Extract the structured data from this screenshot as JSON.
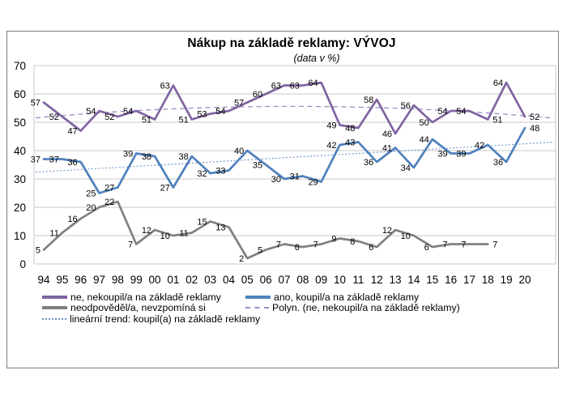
{
  "chart_data": {
    "type": "line",
    "title": "Nákup na základě reklamy: VÝVOJ",
    "subtitle": "(data v %)",
    "xlabel": "",
    "ylabel": "",
    "ylim": [
      0,
      70
    ],
    "yticks": [
      0,
      10,
      20,
      30,
      40,
      50,
      60,
      70
    ],
    "grid": true,
    "legend_position": "bottom",
    "categories": [
      "94",
      "95",
      "96",
      "97",
      "98",
      "99",
      "00",
      "01",
      "02",
      "03",
      "04",
      "05",
      "06",
      "07",
      "08",
      "09",
      "10",
      "11",
      "12",
      "13",
      "14",
      "15",
      "16",
      "17",
      "18",
      "19",
      "20"
    ],
    "series": [
      {
        "name": "ne, nekoupil/a na základě reklamy",
        "color": "#8064A2",
        "line_style": "solid",
        "values": [
          57,
          52,
          47,
          54,
          52,
          54,
          51,
          63,
          51,
          53,
          54,
          57,
          60,
          63,
          63,
          64,
          49,
          48,
          58,
          46,
          56,
          50,
          54,
          54,
          51,
          64,
          52
        ]
      },
      {
        "name": "ano, koupil/a na základě reklamy",
        "color": "#4F81BD",
        "line_style": "solid",
        "values": [
          37,
          37,
          36,
          25,
          27,
          39,
          38,
          27,
          38,
          32,
          33,
          40,
          35,
          30,
          31,
          29,
          42,
          43,
          36,
          41,
          34,
          44,
          39,
          39,
          42,
          36,
          48
        ]
      },
      {
        "name": "neodpověděl/a, nevzpomíná si",
        "color": "#808080",
        "line_style": "solid",
        "values": [
          5,
          11,
          16,
          20,
          22,
          7,
          12,
          10,
          11,
          15,
          13,
          2,
          5,
          7,
          6,
          7,
          9,
          8,
          6,
          12,
          10,
          6,
          7,
          7,
          7,
          null,
          null
        ]
      }
    ],
    "trendlines": [
      {
        "name": "Polyn. (ne, nekoupil/a na základě reklamy)",
        "type": "polynomial2",
        "color": "#9A8CC2",
        "line_style": "dashed",
        "coefficients": {
          "c0": 51.8,
          "c1": 0.565,
          "c2": -0.021
        }
      },
      {
        "name": "lineární trend: koupil(a) na základě reklamy",
        "type": "linear",
        "color": "#6C92C4",
        "line_style": "dotted",
        "start_value": 32.4,
        "end_value": 43.0
      }
    ],
    "colors": {
      "gridline": "#C9C9C9",
      "frame_border": "#7F7F7F",
      "text": "#000000"
    }
  }
}
